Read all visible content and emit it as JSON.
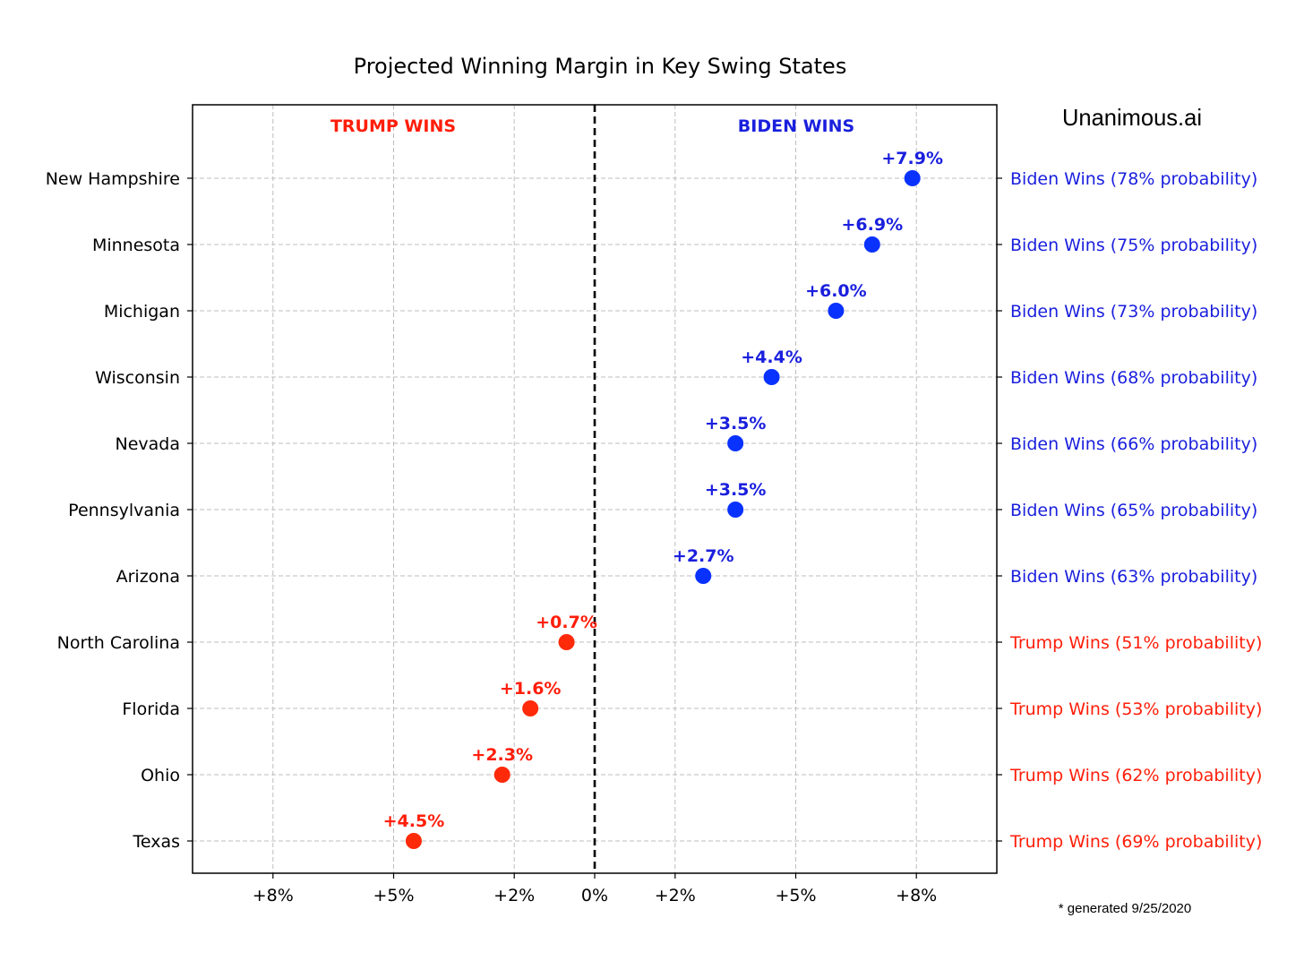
{
  "chart_data": {
    "type": "scatter",
    "title": "Projected Winning Margin in Key Swing States",
    "subtitle": "",
    "xlabel": "",
    "ylabel": "",
    "x_tick_labels": [
      "+8%",
      "+5%",
      "+2%",
      "0%",
      "+2%",
      "+5%",
      "+8%"
    ],
    "x_tick_values": [
      -8,
      -5,
      -2,
      0,
      2,
      5,
      8
    ],
    "xlim": [
      -10,
      10
    ],
    "zero_line": "dashed",
    "grid": true,
    "side_labels": {
      "left": "TRUMP WINS",
      "right": "BIDEN WINS"
    },
    "categories": [
      "New Hampshire",
      "Minnesota",
      "Michigan",
      "Wisconsin",
      "Nevada",
      "Pennsylvania",
      "Arizona",
      "North Carolina",
      "Florida",
      "Ohio",
      "Texas"
    ],
    "points": [
      {
        "state": "New Hampshire",
        "margin": 7.9,
        "label": "+7.9%",
        "winner": "biden",
        "outcome": "Biden Wins (78% probability)"
      },
      {
        "state": "Minnesota",
        "margin": 6.9,
        "label": "+6.9%",
        "winner": "biden",
        "outcome": "Biden Wins (75% probability)"
      },
      {
        "state": "Michigan",
        "margin": 6.0,
        "label": "+6.0%",
        "winner": "biden",
        "outcome": "Biden Wins (73% probability)"
      },
      {
        "state": "Wisconsin",
        "margin": 4.4,
        "label": "+4.4%",
        "winner": "biden",
        "outcome": "Biden Wins (68% probability)"
      },
      {
        "state": "Nevada",
        "margin": 3.5,
        "label": "+3.5%",
        "winner": "biden",
        "outcome": "Biden Wins (66% probability)"
      },
      {
        "state": "Pennsylvania",
        "margin": 3.5,
        "label": "+3.5%",
        "winner": "biden",
        "outcome": "Biden Wins (65% probability)"
      },
      {
        "state": "Arizona",
        "margin": 2.7,
        "label": "+2.7%",
        "winner": "biden",
        "outcome": "Biden Wins (63% probability)"
      },
      {
        "state": "North Carolina",
        "margin": -0.7,
        "label": "+0.7%",
        "winner": "trump",
        "outcome": "Trump Wins (51% probability)"
      },
      {
        "state": "Florida",
        "margin": -1.6,
        "label": "+1.6%",
        "winner": "trump",
        "outcome": "Trump Wins (53% probability)"
      },
      {
        "state": "Ohio",
        "margin": -2.3,
        "label": "+2.3%",
        "winner": "trump",
        "outcome": "Trump Wins (62% probability)"
      },
      {
        "state": "Texas",
        "margin": -4.5,
        "label": "+4.5%",
        "winner": "trump",
        "outcome": "Trump Wins (69% probability)"
      }
    ],
    "colors": {
      "biden": "#1a1fdd",
      "trump": "#ff1e0a",
      "biden_marker": "#0a32ff",
      "trump_marker": "#ff2a0a",
      "grid": "#bdbdbd",
      "axis": "#000000"
    }
  },
  "branding": {
    "name": "Unanimous.ai"
  },
  "footnote": "* generated 9/25/2020"
}
